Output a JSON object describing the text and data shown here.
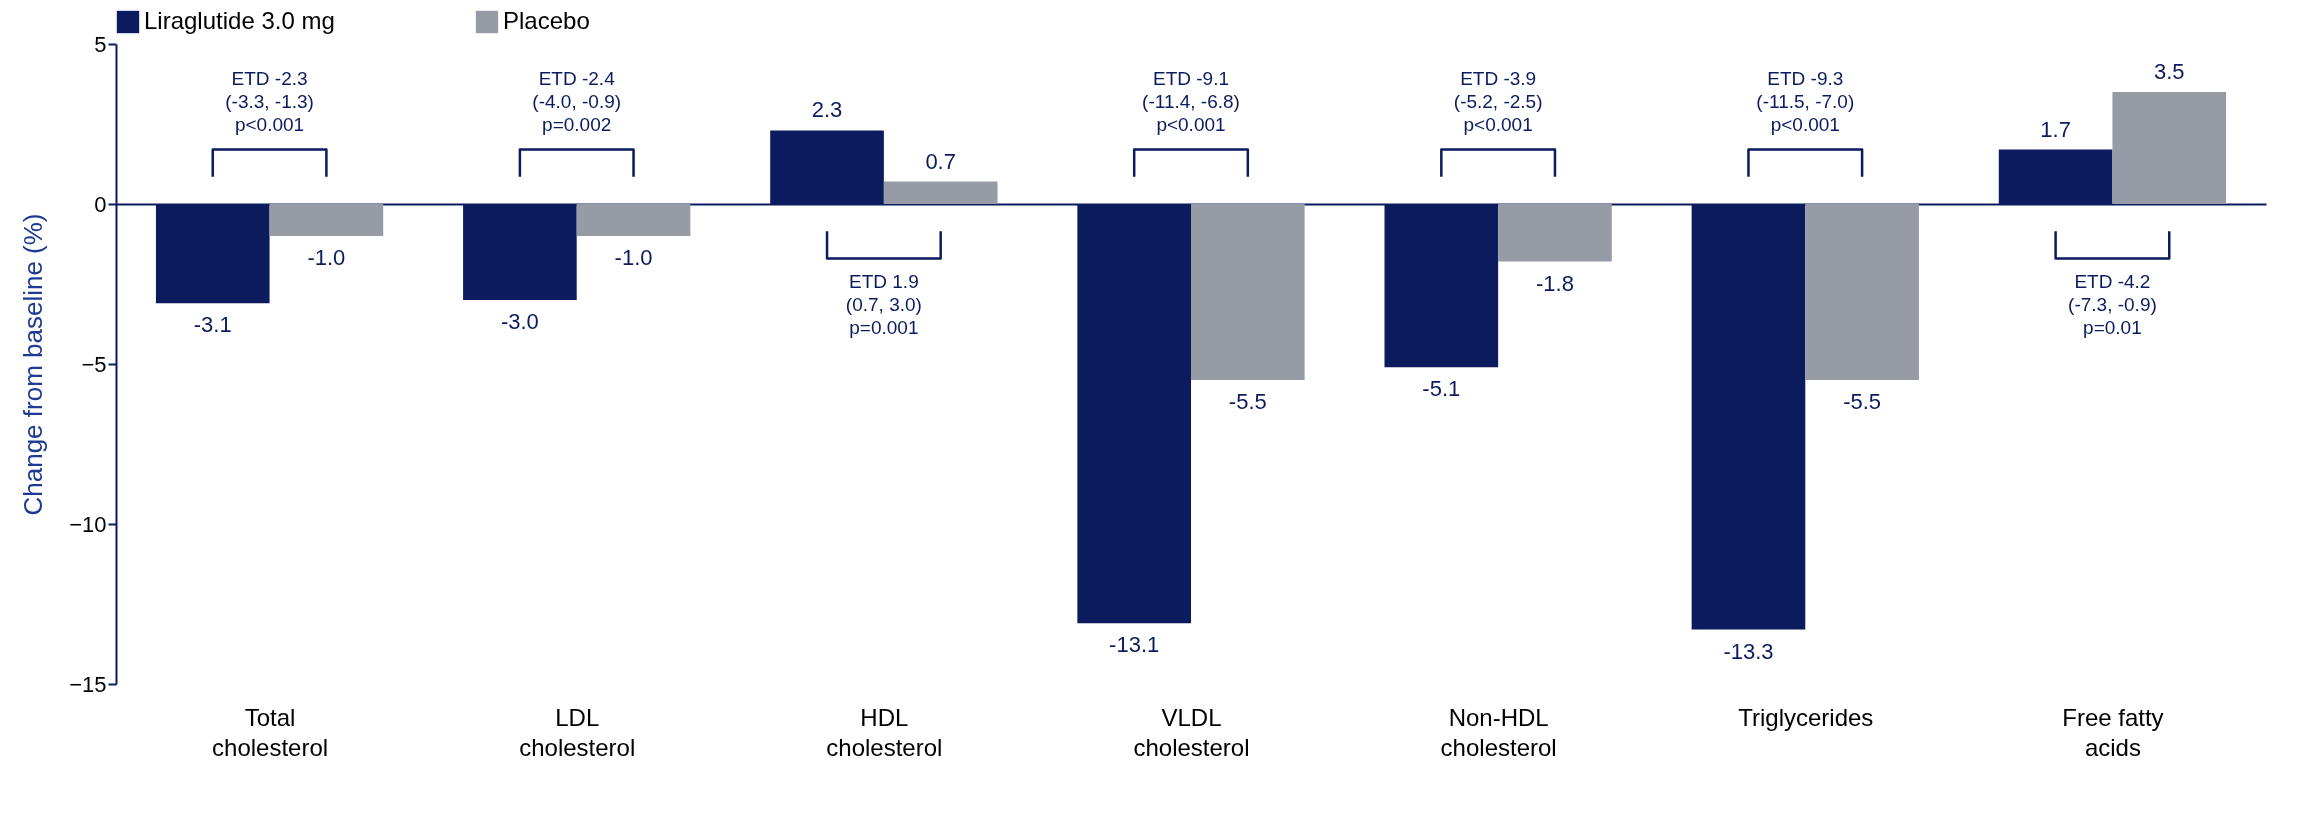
{
  "chart_data": {
    "type": "bar",
    "ylabel": "Change from baseline (%)",
    "categories": [
      "Total cholesterol",
      "LDL cholesterol",
      "HDL cholesterol",
      "VLDL cholesterol",
      "Non-HDL cholesterol",
      "Triglycerides",
      "Free fatty acids"
    ],
    "series": [
      {
        "name": "Liraglutide 3.0 mg",
        "color": "#0b1b5e",
        "values": [
          -3.1,
          -3.0,
          2.3,
          -13.1,
          -5.1,
          -13.3,
          1.7
        ],
        "value_labels": [
          "-3.1",
          "-3.0",
          "2.3",
          "-13.1",
          "-5.1",
          "-13.3",
          "1.7"
        ]
      },
      {
        "name": "Placebo",
        "color": "#969ba6",
        "values": [
          -1.0,
          -1.0,
          0.7,
          -5.5,
          -1.8,
          -5.5,
          3.5
        ],
        "value_labels": [
          "-1.0",
          "-1.0",
          "0.7",
          "-5.5",
          "-1.8",
          "-5.5",
          "3.5"
        ]
      }
    ],
    "ylim": [
      -15,
      5
    ],
    "yticks": [
      -15,
      -10,
      -5,
      0,
      5
    ],
    "grid": false,
    "legend": "top",
    "annotations": [
      "ETD -2.3\n(-3.3, -1.3)\np<0.001",
      "ETD -2.4\n(-4.0, -0.9)\np=0.002",
      "ETD 1.9\n(0.7, 3.0)\np=0.001",
      "ETD -9.1\n(-11.4, -6.8)\np<0.001",
      "ETD -3.9\n(-5.2, -2.5)\np<0.001",
      "ETD -9.3\n(-11.5, -7.0)\np<0.001",
      "ETD -4.2\n(-7.3, -0.9)\np=0.01"
    ]
  }
}
